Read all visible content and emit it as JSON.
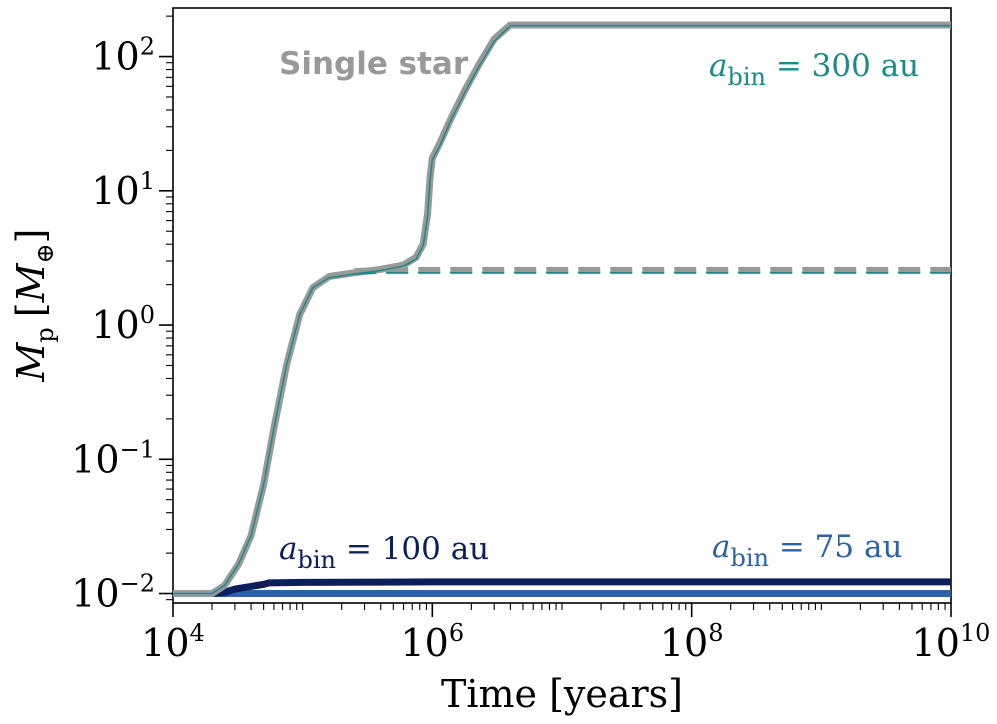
{
  "chart_data": {
    "type": "line",
    "xscale": "log",
    "yscale": "log",
    "xlim": [
      10000,
      10000000000
    ],
    "ylim": [
      0.0085,
      230
    ],
    "xlabel": "Time [years]",
    "ylabel_main": "M",
    "ylabel_sub": "p",
    "ylabel_bracket_open": "[",
    "ylabel_unit_main": "M",
    "ylabel_unit_sub": "⊕",
    "ylabel_bracket_close": "]",
    "x_ticks": [
      {
        "value": 10000,
        "base": "10",
        "exp": "4"
      },
      {
        "value": 1000000,
        "base": "10",
        "exp": "6"
      },
      {
        "value": 100000000,
        "base": "10",
        "exp": "8"
      },
      {
        "value": 10000000000,
        "base": "10",
        "exp": "10"
      }
    ],
    "y_ticks": [
      {
        "value": 0.01,
        "base": "10",
        "exp": "−2"
      },
      {
        "value": 0.1,
        "base": "10",
        "exp": "−1"
      },
      {
        "value": 1,
        "base": "10",
        "exp": "0"
      },
      {
        "value": 10,
        "base": "10",
        "exp": "1"
      },
      {
        "value": 100,
        "base": "10",
        "exp": "2"
      }
    ],
    "series": [
      {
        "name": "a_bin = 300 au (solid)",
        "color": "#1a8a8a",
        "dash": "solid",
        "points": [
          [
            10000,
            0.01
          ],
          [
            15000,
            0.01
          ],
          [
            20000,
            0.01
          ],
          [
            25000,
            0.0115
          ],
          [
            32000,
            0.0165
          ],
          [
            40000,
            0.027
          ],
          [
            50000,
            0.065
          ],
          [
            60000,
            0.17
          ],
          [
            75000,
            0.5
          ],
          [
            95000,
            1.2
          ],
          [
            120000,
            1.9
          ],
          [
            160000,
            2.25
          ],
          [
            250000,
            2.4
          ],
          [
            400000,
            2.55
          ],
          [
            600000,
            2.75
          ],
          [
            750000,
            3.1
          ],
          [
            850000,
            3.9
          ],
          [
            920000,
            6.5
          ],
          [
            960000,
            12
          ],
          [
            1000000,
            17
          ],
          [
            1150000,
            22
          ],
          [
            1400000,
            34
          ],
          [
            1800000,
            55
          ],
          [
            2300000,
            85
          ],
          [
            3000000,
            130
          ],
          [
            4000000,
            170
          ],
          [
            10000000000,
            170
          ]
        ]
      },
      {
        "name": "a_bin = 300 au (dashed)",
        "color": "#1a8a8a",
        "dash": "dashed",
        "points": [
          [
            250000,
            2.4
          ],
          [
            400000,
            2.45
          ],
          [
            600000,
            2.45
          ],
          [
            10000000000,
            2.45
          ]
        ]
      },
      {
        "name": "Single star (solid)",
        "color": "#999999",
        "dash": "solid",
        "points": [
          [
            10000,
            0.01
          ],
          [
            15000,
            0.01
          ],
          [
            20000,
            0.01
          ],
          [
            25000,
            0.0115
          ],
          [
            32000,
            0.0165
          ],
          [
            40000,
            0.027
          ],
          [
            50000,
            0.065
          ],
          [
            60000,
            0.17
          ],
          [
            75000,
            0.5
          ],
          [
            95000,
            1.2
          ],
          [
            120000,
            1.9
          ],
          [
            160000,
            2.3
          ],
          [
            250000,
            2.45
          ],
          [
            400000,
            2.6
          ],
          [
            600000,
            2.8
          ],
          [
            750000,
            3.2
          ],
          [
            850000,
            4
          ],
          [
            920000,
            6.8
          ],
          [
            960000,
            12.5
          ],
          [
            1000000,
            17.5
          ],
          [
            1150000,
            23
          ],
          [
            1400000,
            35
          ],
          [
            1800000,
            57
          ],
          [
            2300000,
            88
          ],
          [
            3000000,
            135
          ],
          [
            4000000,
            172
          ],
          [
            10000000000,
            172
          ]
        ]
      },
      {
        "name": "Single star (dashed)",
        "color": "#999999",
        "dash": "dashed",
        "points": [
          [
            250000,
            2.5
          ],
          [
            400000,
            2.55
          ],
          [
            600000,
            2.55
          ],
          [
            10000000000,
            2.55
          ]
        ]
      },
      {
        "name": "a_bin = 75 au",
        "color": "#2d62a5",
        "dash": "solid",
        "points": [
          [
            10000,
            0.01
          ],
          [
            10000000000,
            0.01
          ]
        ]
      },
      {
        "name": "a_bin = 100 au",
        "color": "#0b1f5c",
        "dash": "solid",
        "points": [
          [
            10000,
            0.01
          ],
          [
            20000,
            0.01
          ],
          [
            25000,
            0.0102
          ],
          [
            30000,
            0.0108
          ],
          [
            40000,
            0.0113
          ],
          [
            50000,
            0.0117
          ],
          [
            55000,
            0.012
          ],
          [
            100000,
            0.0121
          ],
          [
            1000000,
            0.0122
          ],
          [
            10000000000,
            0.0122
          ]
        ]
      }
    ],
    "annotations": [
      {
        "id": "single",
        "text": "Single star",
        "color": "#999999"
      },
      {
        "id": "a300",
        "prefix": "a",
        "sub": "bin",
        "suffix": " = 300 au",
        "color": "#1a8a8a"
      },
      {
        "id": "a100",
        "prefix": "a",
        "sub": "bin",
        "suffix": " = 100 au",
        "color": "#0b1f5c"
      },
      {
        "id": "a75",
        "prefix": "a",
        "sub": "bin",
        "suffix": " = 75 au",
        "color": "#2d62a5"
      }
    ],
    "grid": false,
    "legend": "none"
  }
}
